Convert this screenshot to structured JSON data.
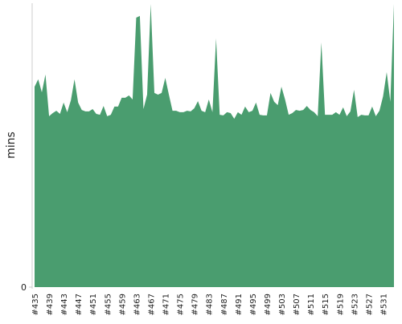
{
  "chart_data": {
    "type": "area",
    "y_label": "mins",
    "color": "#4a9d6f",
    "categories": [
      "#435",
      null,
      null,
      null,
      "#439",
      null,
      null,
      null,
      "#443",
      null,
      null,
      null,
      "#447",
      null,
      null,
      null,
      "#451",
      null,
      null,
      null,
      "#455",
      null,
      null,
      null,
      "#459",
      null,
      null,
      null,
      "#463",
      null,
      null,
      null,
      "#467",
      null,
      null,
      null,
      "#471",
      null,
      null,
      null,
      "#475",
      null,
      null,
      null,
      "#479",
      null,
      null,
      null,
      "#483",
      null,
      null,
      null,
      "#487",
      null,
      null,
      null,
      "#491",
      null,
      null,
      null,
      "#495",
      null,
      null,
      null,
      "#499",
      null,
      null,
      null,
      "#503",
      null,
      null,
      null,
      "#507",
      null,
      null,
      null,
      "#511",
      null,
      null,
      null,
      "#515",
      null,
      null,
      null,
      "#519",
      null,
      null,
      null,
      "#523",
      null,
      null,
      null,
      "#527",
      null,
      null,
      null,
      "#531",
      null,
      null,
      null
    ],
    "values": [
      70.6,
      73.2,
      68.6,
      74.9,
      60.2,
      61.3,
      62.1,
      61.0,
      65.0,
      61.6,
      65.8,
      73.2,
      65.0,
      62.4,
      61.9,
      61.9,
      62.7,
      61.0,
      60.7,
      63.8,
      60.2,
      60.7,
      63.6,
      63.6,
      66.7,
      66.7,
      67.5,
      66.1,
      94.9,
      95.5,
      62.7,
      67.8,
      99.7,
      68.4,
      67.8,
      68.4,
      73.7,
      67.8,
      62.1,
      62.1,
      61.6,
      61.6,
      62.1,
      61.9,
      63.0,
      65.5,
      62.1,
      61.6,
      66.1,
      61.6,
      87.6,
      60.7,
      60.5,
      61.6,
      61.3,
      59.3,
      61.6,
      60.7,
      63.6,
      61.6,
      62.1,
      65.0,
      60.7,
      60.5,
      60.5,
      68.4,
      65.3,
      64.1,
      70.6,
      66.1,
      60.7,
      61.3,
      62.4,
      62.1,
      62.4,
      63.8,
      62.4,
      61.6,
      60.2,
      86.2,
      60.7,
      60.7,
      60.7,
      61.6,
      60.7,
      63.3,
      60.2,
      61.9,
      69.5,
      59.9,
      60.7,
      60.5,
      60.5,
      63.6,
      60.2,
      62.1,
      67.2,
      75.7,
      65.3,
      99.7
    ],
    "ylim": [
      0,
      100
    ],
    "yticks": [
      0
    ]
  }
}
